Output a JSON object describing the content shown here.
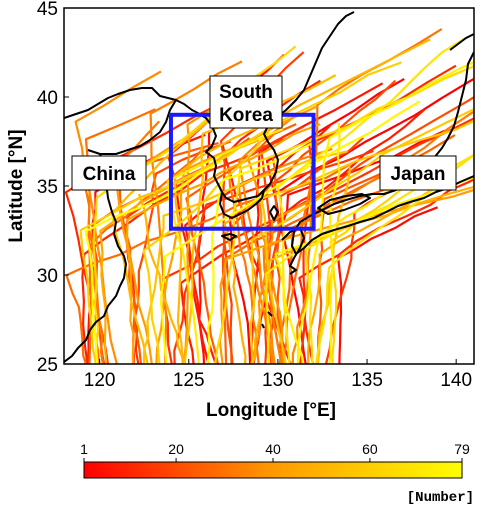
{
  "map": {
    "xlabel": "Longitude [°E]",
    "ylabel": "Latitude [°N]",
    "xlim": [
      118,
      141
    ],
    "ylim": [
      25,
      45
    ],
    "xticks": [
      "120",
      "125",
      "130",
      "135",
      "140"
    ],
    "yticks": [
      "25",
      "30",
      "35",
      "40",
      "45"
    ],
    "regions": [
      {
        "name": "china",
        "lines": [
          "China"
        ]
      },
      {
        "name": "south-korea",
        "lines": [
          "South",
          "Korea"
        ]
      },
      {
        "name": "japan",
        "lines": [
          "Japan"
        ]
      }
    ],
    "study_box": {
      "lon": [
        124,
        132
      ],
      "lat": [
        32.6,
        39
      ],
      "color": "#1a1aff"
    },
    "colors": {
      "track_low": "#ff0000",
      "track_high": "#ffff00",
      "coastline": "#000000",
      "frame": "#000000"
    }
  },
  "colorbar": {
    "ticks": [
      "1",
      "20",
      "40",
      "60",
      "79"
    ],
    "unit": "[Number]",
    "range": [
      1,
      79
    ]
  }
}
